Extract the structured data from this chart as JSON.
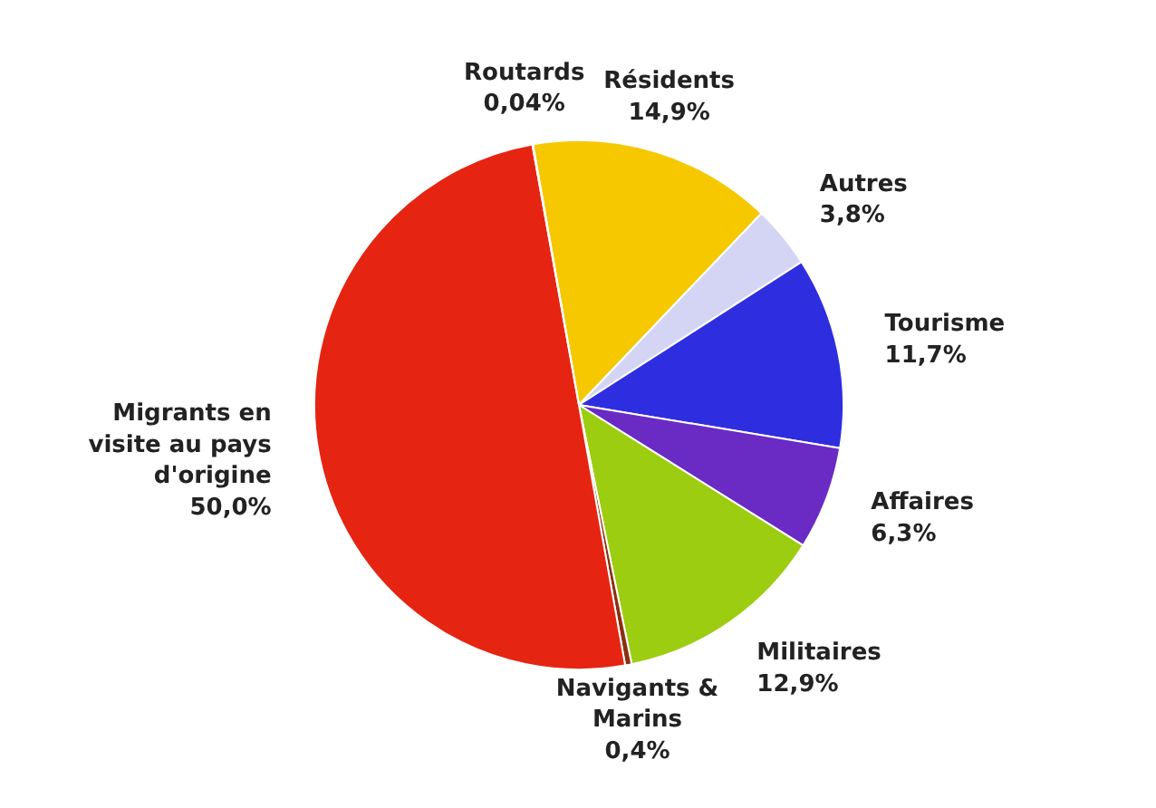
{
  "chart_data": {
    "type": "pie",
    "categories": [
      "Résidents",
      "Autres",
      "Tourisme",
      "Affaires",
      "Militaires",
      "Navigants & Marins",
      "Migrants en visite au pays d'origine",
      "Routards"
    ],
    "values": [
      14.9,
      3.8,
      11.7,
      6.3,
      12.9,
      0.4,
      50.0,
      0.04
    ],
    "value_labels": [
      "14,9%",
      "3,8%",
      "11,7%",
      "6,3%",
      "12,9%",
      "0,4%",
      "50,0%",
      "0,04%"
    ],
    "colors": [
      "#f5c800",
      "#d4d4f4",
      "#2e2ee0",
      "#6a2ac4",
      "#9ccd10",
      "#8b3010",
      "#e52412",
      "#8c9c9e"
    ]
  }
}
